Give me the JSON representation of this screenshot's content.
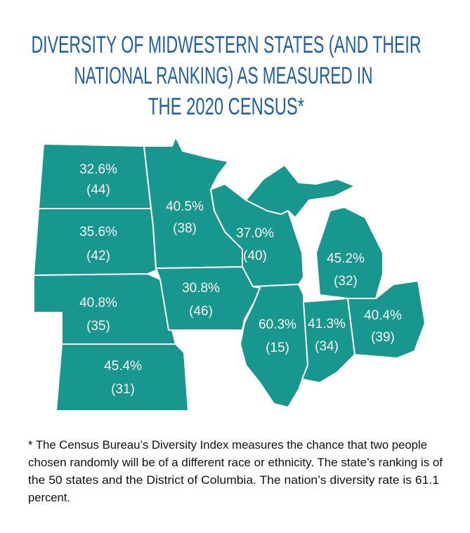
{
  "title": {
    "lines": [
      "DIVERSITY OF MIDWESTERN STATES (AND THEIR",
      "NATIONAL RANKING) AS MEASURED IN",
      "THE 2020 CENSUS*"
    ]
  },
  "states": [
    {
      "value": "32.6%",
      "rank": "(44)"
    },
    {
      "value": "35.6%",
      "rank": "(42)"
    },
    {
      "value": "40.8%",
      "rank": "(35)"
    },
    {
      "value": "45.4%",
      "rank": "(31)"
    },
    {
      "value": "40.5%",
      "rank": "(38)"
    },
    {
      "value": "30.8%",
      "rank": "(46)"
    },
    {
      "value": "37.0%",
      "rank": "(40)"
    },
    {
      "value": "60.3%",
      "rank": "(15)"
    },
    {
      "value": "41.3%",
      "rank": "(34)"
    },
    {
      "value": "40.4%",
      "rank": "(39)"
    },
    {
      "value": "45.2%",
      "rank": "(32)"
    }
  ],
  "footnote": {
    "lines": [
      "* The Census Bureau’s Diversity Index measures the chance that two people",
      "chosen randomly will be of a different race or ethnicity. The state’s ranking is of",
      "the 50 states and the District of Columbia. The nation’s diversity rate is 61.1",
      "percent."
    ]
  }
}
